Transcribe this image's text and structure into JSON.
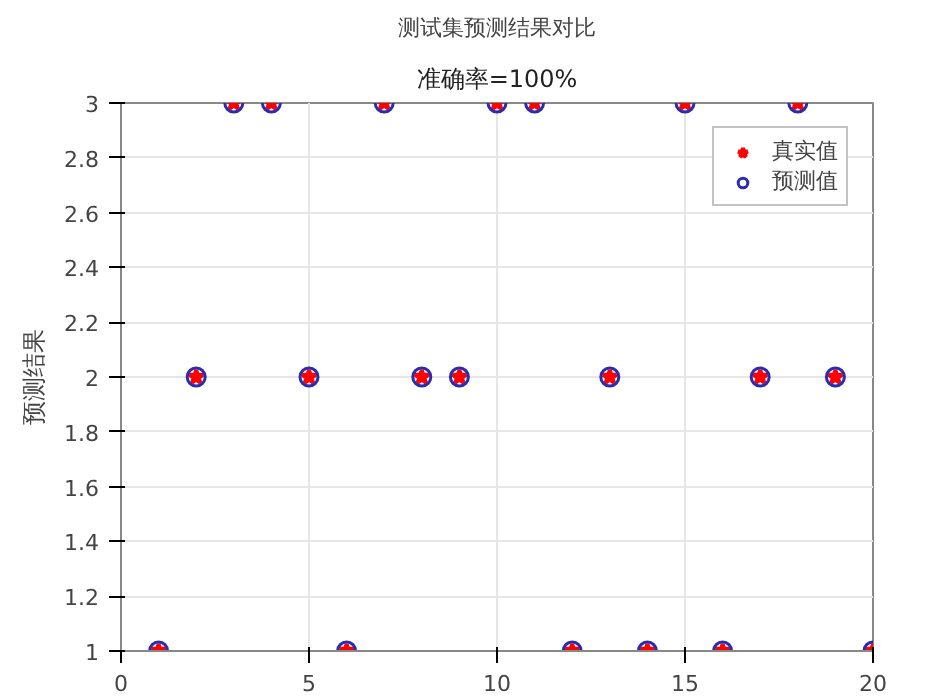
{
  "chart_data": {
    "type": "scatter",
    "title": "测试集预测结果对比",
    "subtitle": "准确率=100%",
    "ylabel": "预测结果",
    "x": [
      1,
      2,
      3,
      4,
      5,
      6,
      7,
      8,
      9,
      10,
      11,
      12,
      13,
      14,
      15,
      16,
      17,
      18,
      19,
      20
    ],
    "series": [
      {
        "name": "真实值",
        "color": "#ff0000",
        "marker": "star",
        "values": [
          1,
          2,
          3,
          3,
          2,
          1,
          3,
          2,
          2,
          3,
          3,
          1,
          2,
          1,
          3,
          1,
          2,
          3,
          2,
          1
        ]
      },
      {
        "name": "预测值",
        "color": "#2b2bb0",
        "marker": "circle",
        "values": [
          1,
          2,
          3,
          3,
          2,
          1,
          3,
          2,
          2,
          3,
          3,
          1,
          2,
          1,
          3,
          1,
          2,
          3,
          2,
          1
        ]
      }
    ],
    "xlim": [
      0,
      20
    ],
    "ylim": [
      1,
      3
    ],
    "xticks": [
      0,
      5,
      10,
      15,
      20
    ],
    "yticks": [
      1,
      1.2,
      1.4,
      1.6,
      1.8,
      2,
      2.2,
      2.4,
      2.6,
      2.8,
      3
    ],
    "grid": true,
    "legend": "top right"
  }
}
